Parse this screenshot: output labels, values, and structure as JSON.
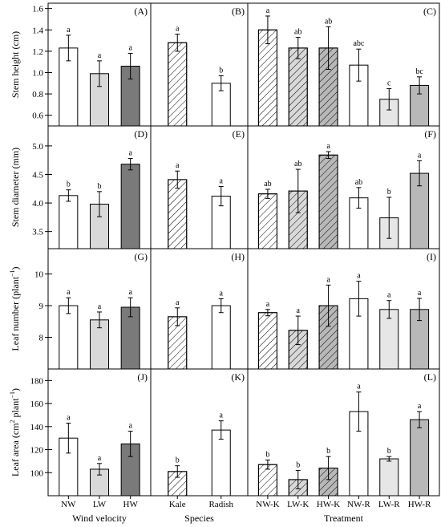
{
  "colors": {
    "white": "#ffffff",
    "light_gray": "#d9d9d9",
    "mid_gray": "#b8b8b8",
    "dark_gray": "#7a7a7a",
    "very_light_gray": "#e6e6e6"
  },
  "chart_data": [
    {
      "type": "bar",
      "panel_label": "(A)",
      "row": 0,
      "col": 0,
      "ylabel": "Stem height (cm)",
      "ylim": [
        0.5,
        1.65
      ],
      "yticks": [
        0.6,
        0.8,
        1.0,
        1.2,
        1.4,
        1.6
      ],
      "ytick_labels": [
        "0.6",
        "0.8",
        "1.0",
        "1.2",
        "1.4",
        "1.6"
      ],
      "categories": [
        "NW",
        "LW",
        "HW"
      ],
      "values": [
        1.23,
        0.99,
        1.06
      ],
      "errors": [
        0.12,
        0.12,
        0.12
      ],
      "letters": [
        "a",
        "a",
        "a"
      ],
      "fills": [
        "white",
        "light_gray",
        "dark_gray"
      ],
      "hatch": [
        false,
        false,
        false
      ]
    },
    {
      "type": "bar",
      "panel_label": "(B)",
      "row": 0,
      "col": 1,
      "ylim": [
        0.5,
        1.65
      ],
      "categories": [
        "Kale",
        "Radish"
      ],
      "values": [
        1.28,
        0.9
      ],
      "errors": [
        0.08,
        0.07
      ],
      "letters": [
        "a",
        "b"
      ],
      "fills": [
        "white",
        "white"
      ],
      "hatch": [
        true,
        false
      ]
    },
    {
      "type": "bar",
      "panel_label": "(C)",
      "row": 0,
      "col": 2,
      "ylim": [
        0.5,
        1.65
      ],
      "categories": [
        "NW-K",
        "LW-K",
        "HW-K",
        "NW-R",
        "LW-R",
        "HW-R"
      ],
      "values": [
        1.4,
        1.23,
        1.23,
        1.07,
        0.75,
        0.88
      ],
      "errors": [
        0.13,
        0.1,
        0.2,
        0.15,
        0.1,
        0.08
      ],
      "letters": [
        "a",
        "ab",
        "ab",
        "abc",
        "c",
        "bc"
      ],
      "fills": [
        "white",
        "light_gray",
        "mid_gray",
        "white",
        "very_light_gray",
        "mid_gray"
      ],
      "hatch": [
        true,
        true,
        true,
        false,
        false,
        false
      ]
    },
    {
      "type": "bar",
      "panel_label": "(D)",
      "row": 1,
      "col": 0,
      "ylabel": "Stem diameter (mm)",
      "ylim": [
        3.2,
        5.35
      ],
      "yticks": [
        3.5,
        4.0,
        4.5,
        5.0
      ],
      "ytick_labels": [
        "3.5",
        "4.0",
        "4.5",
        "5.0"
      ],
      "categories": [
        "NW",
        "LW",
        "HW"
      ],
      "values": [
        4.13,
        3.98,
        4.68
      ],
      "errors": [
        0.1,
        0.22,
        0.1
      ],
      "letters": [
        "b",
        "b",
        "a"
      ],
      "fills": [
        "white",
        "light_gray",
        "dark_gray"
      ],
      "hatch": [
        false,
        false,
        false
      ]
    },
    {
      "type": "bar",
      "panel_label": "(E)",
      "row": 1,
      "col": 1,
      "ylim": [
        3.2,
        5.35
      ],
      "categories": [
        "Kale",
        "Radish"
      ],
      "values": [
        4.41,
        4.12
      ],
      "errors": [
        0.15,
        0.17
      ],
      "letters": [
        "a",
        "a"
      ],
      "fills": [
        "white",
        "white"
      ],
      "hatch": [
        true,
        false
      ]
    },
    {
      "type": "bar",
      "panel_label": "(F)",
      "row": 1,
      "col": 2,
      "ylim": [
        3.2,
        5.35
      ],
      "categories": [
        "NW-K",
        "LW-K",
        "HW-K",
        "NW-R",
        "LW-R",
        "HW-R"
      ],
      "values": [
        4.16,
        4.21,
        4.84,
        4.09,
        3.74,
        4.52
      ],
      "errors": [
        0.08,
        0.38,
        0.06,
        0.18,
        0.36,
        0.22
      ],
      "letters": [
        "ab",
        "ab",
        "a",
        "ab",
        "b",
        "a"
      ],
      "fills": [
        "white",
        "light_gray",
        "mid_gray",
        "white",
        "very_light_gray",
        "mid_gray"
      ],
      "hatch": [
        true,
        true,
        true,
        false,
        false,
        false
      ]
    },
    {
      "type": "bar",
      "panel_label": "(G)",
      "row": 2,
      "col": 0,
      "ylabel": "Leaf number (plant",
      "ylabel_sup": "−1",
      "ylabel_tail": ")",
      "ylim": [
        7,
        10.8
      ],
      "yticks": [
        8,
        9,
        10
      ],
      "ytick_labels": [
        "8",
        "9",
        "10"
      ],
      "categories": [
        "NW",
        "LW",
        "HW"
      ],
      "values": [
        9.0,
        8.55,
        8.95
      ],
      "errors": [
        0.25,
        0.25,
        0.3
      ],
      "letters": [
        "a",
        "a",
        "a"
      ],
      "fills": [
        "white",
        "light_gray",
        "dark_gray"
      ],
      "hatch": [
        false,
        false,
        false
      ]
    },
    {
      "type": "bar",
      "panel_label": "(H)",
      "row": 2,
      "col": 1,
      "ylim": [
        7,
        10.8
      ],
      "categories": [
        "Kale",
        "Radish"
      ],
      "values": [
        8.65,
        9.0
      ],
      "errors": [
        0.28,
        0.22
      ],
      "letters": [
        "a",
        "a"
      ],
      "fills": [
        "white",
        "white"
      ],
      "hatch": [
        true,
        false
      ]
    },
    {
      "type": "bar",
      "panel_label": "(I)",
      "row": 2,
      "col": 2,
      "ylim": [
        7,
        10.8
      ],
      "categories": [
        "NW-K",
        "LW-K",
        "HW-K",
        "NW-R",
        "LW-R",
        "HW-R"
      ],
      "values": [
        8.78,
        8.22,
        9.0,
        9.22,
        8.88,
        8.88
      ],
      "errors": [
        0.1,
        0.45,
        0.65,
        0.55,
        0.28,
        0.35
      ],
      "letters": [
        "a",
        "a",
        "a",
        "a",
        "a",
        "a"
      ],
      "fills": [
        "white",
        "light_gray",
        "mid_gray",
        "white",
        "very_light_gray",
        "mid_gray"
      ],
      "hatch": [
        true,
        true,
        true,
        false,
        false,
        false
      ]
    },
    {
      "type": "bar",
      "panel_label": "(J)",
      "row": 3,
      "col": 0,
      "ylabel": "Leaf area (cm",
      "ylabel_sup": "2",
      "ylabel_tail": " plant",
      "ylabel_sup2": "−1",
      "ylabel_tail2": ")",
      "ylim": [
        80,
        190
      ],
      "yticks": [
        100,
        120,
        140,
        160,
        180
      ],
      "ytick_labels": [
        "100",
        "120",
        "140",
        "160",
        "180"
      ],
      "categories": [
        "NW",
        "LW",
        "HW"
      ],
      "values": [
        130,
        103,
        125
      ],
      "errors": [
        13,
        5,
        11
      ],
      "letters": [
        "a",
        "a",
        "a"
      ],
      "fills": [
        "white",
        "light_gray",
        "dark_gray"
      ],
      "hatch": [
        false,
        false,
        false
      ],
      "xlabel": "Wind velocity"
    },
    {
      "type": "bar",
      "panel_label": "(K)",
      "row": 3,
      "col": 1,
      "ylim": [
        80,
        190
      ],
      "categories": [
        "Kale",
        "Radish"
      ],
      "values": [
        101,
        137
      ],
      "errors": [
        5,
        8
      ],
      "letters": [
        "b",
        "a"
      ],
      "fills": [
        "white",
        "white"
      ],
      "hatch": [
        true,
        false
      ],
      "xlabel": "Species"
    },
    {
      "type": "bar",
      "panel_label": "(L)",
      "row": 3,
      "col": 2,
      "ylim": [
        80,
        190
      ],
      "categories": [
        "NW-K",
        "LW-K",
        "HW-K",
        "NW-R",
        "LW-R",
        "HW-R"
      ],
      "values": [
        107,
        94,
        104,
        153,
        112,
        146
      ],
      "errors": [
        4,
        8,
        10,
        17,
        2,
        7
      ],
      "letters": [
        "b",
        "b",
        "b",
        "a",
        "b",
        "a"
      ],
      "fills": [
        "white",
        "light_gray",
        "mid_gray",
        "white",
        "very_light_gray",
        "mid_gray"
      ],
      "hatch": [
        true,
        true,
        true,
        false,
        false,
        false
      ],
      "xlabel": "Treatment"
    }
  ]
}
